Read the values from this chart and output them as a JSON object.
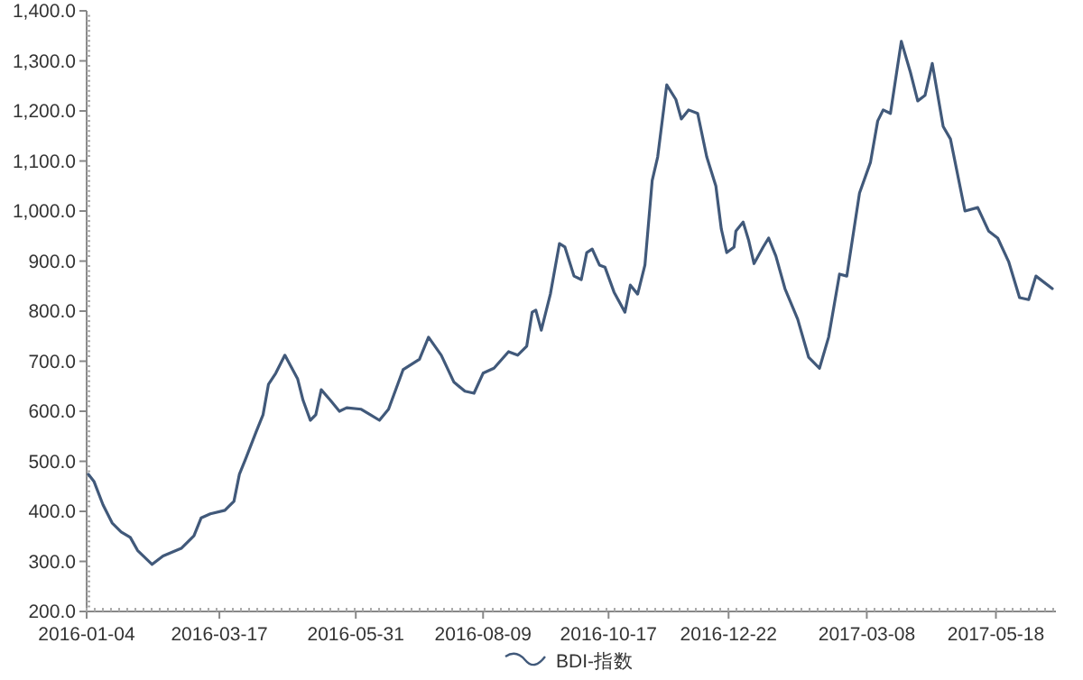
{
  "chart_data": {
    "type": "line",
    "legend": "bottom",
    "marker": "none",
    "line_style": "solid",
    "grid": false,
    "xlim": [
      "2016-01-04",
      "2017-06-20"
    ],
    "xticks": [
      "2016-01-04",
      "2016-03-17",
      "2016-05-31",
      "2016-08-09",
      "2016-10-17",
      "2016-12-22",
      "2017-03-08",
      "2017-05-18"
    ],
    "ylim": [
      200,
      1400
    ],
    "yticks": [
      {
        "value": 200,
        "label": "200.0"
      },
      {
        "value": 300,
        "label": "300.0"
      },
      {
        "value": 400,
        "label": "400.0"
      },
      {
        "value": 500,
        "label": "500.0"
      },
      {
        "value": 600,
        "label": "600.0"
      },
      {
        "value": 700,
        "label": "700.0"
      },
      {
        "value": 800,
        "label": "800.0"
      },
      {
        "value": 900,
        "label": "900.0"
      },
      {
        "value": 1000,
        "label": "1,000.0"
      },
      {
        "value": 1100,
        "label": "1,100.0"
      },
      {
        "value": 1200,
        "label": "1,200.0"
      },
      {
        "value": 1300,
        "label": "1,300.0"
      },
      {
        "value": 1400,
        "label": "1,400.0"
      }
    ],
    "x": [
      "2016-01-05",
      "2016-01-08",
      "2016-01-13",
      "2016-01-18",
      "2016-01-23",
      "2016-01-28",
      "2016-02-01",
      "2016-02-09",
      "2016-02-15",
      "2016-02-25",
      "2016-03-03",
      "2016-03-07",
      "2016-03-12",
      "2016-03-20",
      "2016-03-25",
      "2016-03-28",
      "2016-04-01",
      "2016-04-06",
      "2016-04-10",
      "2016-04-13",
      "2016-04-17",
      "2016-04-22",
      "2016-04-29",
      "2016-05-02",
      "2016-05-06",
      "2016-05-09",
      "2016-05-12",
      "2016-05-17",
      "2016-05-22",
      "2016-05-26",
      "2016-06-03",
      "2016-06-08",
      "2016-06-13",
      "2016-06-18",
      "2016-06-26",
      "2016-07-05",
      "2016-07-10",
      "2016-07-17",
      "2016-07-24",
      "2016-07-30",
      "2016-08-04",
      "2016-08-09",
      "2016-08-15",
      "2016-08-23",
      "2016-08-28",
      "2016-09-02",
      "2016-09-05",
      "2016-09-07",
      "2016-09-10",
      "2016-09-15",
      "2016-09-20",
      "2016-09-23",
      "2016-09-28",
      "2016-10-02",
      "2016-10-05",
      "2016-10-08",
      "2016-10-12",
      "2016-10-15",
      "2016-10-20",
      "2016-10-26",
      "2016-10-29",
      "2016-11-02",
      "2016-11-06",
      "2016-11-10",
      "2016-11-13",
      "2016-11-18",
      "2016-11-23",
      "2016-11-26",
      "2016-11-30",
      "2016-12-05",
      "2016-12-10",
      "2016-12-15",
      "2016-12-18",
      "2016-12-21",
      "2016-12-25",
      "2016-12-26",
      "2016-12-30",
      "2017-01-02",
      "2017-01-05",
      "2017-01-10",
      "2017-01-13",
      "2017-01-17",
      "2017-01-22",
      "2017-01-29",
      "2017-02-04",
      "2017-02-10",
      "2017-02-15",
      "2017-02-21",
      "2017-02-25",
      "2017-03-04",
      "2017-03-10",
      "2017-03-14",
      "2017-03-17",
      "2017-03-21",
      "2017-03-27",
      "2017-04-01",
      "2017-04-05",
      "2017-04-09",
      "2017-04-13",
      "2017-04-19",
      "2017-04-23",
      "2017-05-01",
      "2017-05-08",
      "2017-05-14",
      "2017-05-19",
      "2017-05-25",
      "2017-05-31",
      "2017-06-05",
      "2017-06-09",
      "2017-06-18"
    ],
    "series": [
      {
        "name": "BDI-指数",
        "color": "#41597a",
        "values": [
          474,
          460,
          413,
          377,
          359,
          348,
          322,
          294,
          311,
          326,
          351,
          387,
          395,
          402,
          420,
          474,
          510,
          557,
          593,
          654,
          676,
          712,
          665,
          622,
          582,
          593,
          643,
          622,
          600,
          607,
          604,
          593,
          582,
          604,
          683,
          704,
          748,
          712,
          658,
          640,
          636,
          676,
          686,
          719,
          712,
          730,
          798,
          802,
          762,
          834,
          935,
          928,
          870,
          863,
          917,
          924,
          892,
          888,
          838,
          798,
          852,
          834,
          892,
          1061,
          1108,
          1252,
          1223,
          1184,
          1202,
          1195,
          1108,
          1050,
          964,
          917,
          928,
          960,
          978,
          942,
          895,
          928,
          946,
          910,
          845,
          784,
          708,
          686,
          748,
          874,
          870,
          1036,
          1097,
          1180,
          1202,
          1195,
          1339,
          1277,
          1220,
          1231,
          1295,
          1169,
          1144,
          1000,
          1007,
          960,
          946,
          899,
          827,
          823,
          870,
          845
        ]
      }
    ]
  }
}
